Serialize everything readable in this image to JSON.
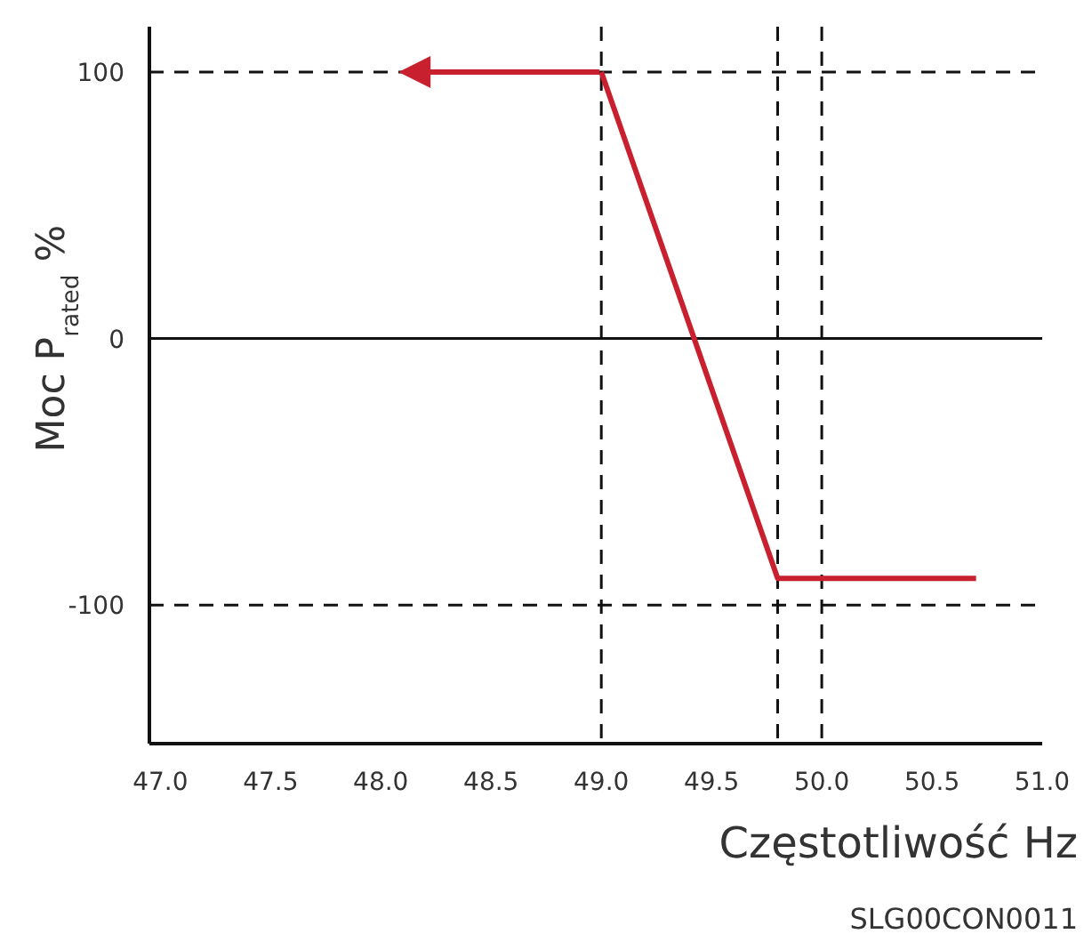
{
  "chart_data": {
    "type": "line",
    "xlabel": "Częstotliwość Hz",
    "ylabel": "Moc P$_{rated}$ %",
    "annotations": [
      "SLG00CON0011"
    ],
    "x": [
      49.0,
      49.8,
      50.7
    ],
    "series": [
      {
        "color": "#c8202f",
        "values": [
          100,
          -90,
          -90
        ]
      }
    ],
    "xlim": [
      46.95,
      51.0
    ],
    "xticks": [
      {
        "value": 47.0,
        "label": "47.0"
      },
      {
        "value": 47.5,
        "label": "47.5"
      },
      {
        "value": 48.0,
        "label": "48.0"
      },
      {
        "value": 48.5,
        "label": "48.5"
      },
      {
        "value": 49.0,
        "label": "49.0"
      },
      {
        "value": 49.5,
        "label": "49.5"
      },
      {
        "value": 50.0,
        "label": "50.0"
      },
      {
        "value": 50.5,
        "label": "50.5"
      },
      {
        "value": 51.0,
        "label": "51.0"
      }
    ],
    "ylim": [
      -152,
      117
    ],
    "yticks": [
      100,
      0,
      -100
    ],
    "ref_lines": [
      {
        "axis": "y",
        "value": 0,
        "line_style": "solid"
      },
      {
        "axis": "x",
        "value": 49.0,
        "line_style": "dashed"
      },
      {
        "axis": "x",
        "value": 49.8,
        "line_style": "dashed"
      },
      {
        "axis": "x",
        "value": 50.0,
        "line_style": "dashed"
      }
    ],
    "grid": "y",
    "line_style": "solid"
  }
}
